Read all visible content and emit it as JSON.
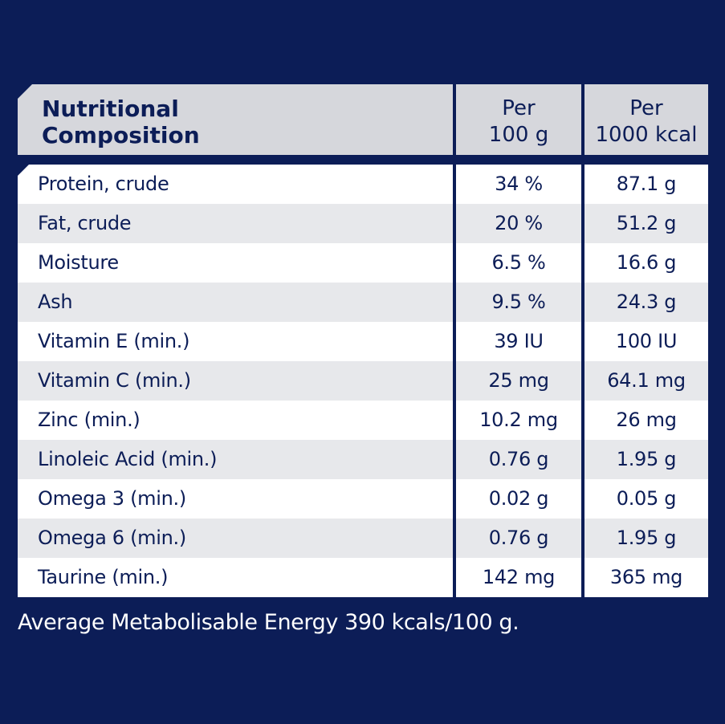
{
  "header": {
    "title_line1": "Nutritional",
    "title_line2": "Composition",
    "col1_line1": "Per",
    "col1_line2": "100 g",
    "col2_line1": "Per",
    "col2_line2": "1000 kcal"
  },
  "rows": [
    {
      "name": "Protein, crude",
      "per100g": "34 %",
      "per1000kcal": "87.1 g"
    },
    {
      "name": "Fat, crude",
      "per100g": "20 %",
      "per1000kcal": "51.2 g"
    },
    {
      "name": "Moisture",
      "per100g": "6.5 %",
      "per1000kcal": "16.6 g"
    },
    {
      "name": "Ash",
      "per100g": "9.5 %",
      "per1000kcal": "24.3 g"
    },
    {
      "name": "Vitamin E (min.)",
      "per100g": "39 IU",
      "per1000kcal": "100 IU"
    },
    {
      "name": "Vitamin C (min.)",
      "per100g": "25 mg",
      "per1000kcal": "64.1 mg"
    },
    {
      "name": "Zinc (min.)",
      "per100g": "10.2 mg",
      "per1000kcal": "26 mg"
    },
    {
      "name": "Linoleic Acid (min.)",
      "per100g": "0.76 g",
      "per1000kcal": "1.95 g"
    },
    {
      "name": "Omega 3 (min.)",
      "per100g": "0.02 g",
      "per1000kcal": "0.05 g"
    },
    {
      "name": "Omega 6 (min.)",
      "per100g": "0.76 g",
      "per1000kcal": "1.95 g"
    },
    {
      "name": "Taurine (min.)",
      "per100g": "142 mg",
      "per1000kcal": "365 mg"
    }
  ],
  "footnote": "Average Metabolisable Energy 390 kcals/100 g.",
  "colors": {
    "background": "#0c1d57",
    "header_fill": "#d6d7dc",
    "row_white": "#ffffff",
    "row_grey": "#e7e8eb",
    "text": "#0c1d57"
  }
}
